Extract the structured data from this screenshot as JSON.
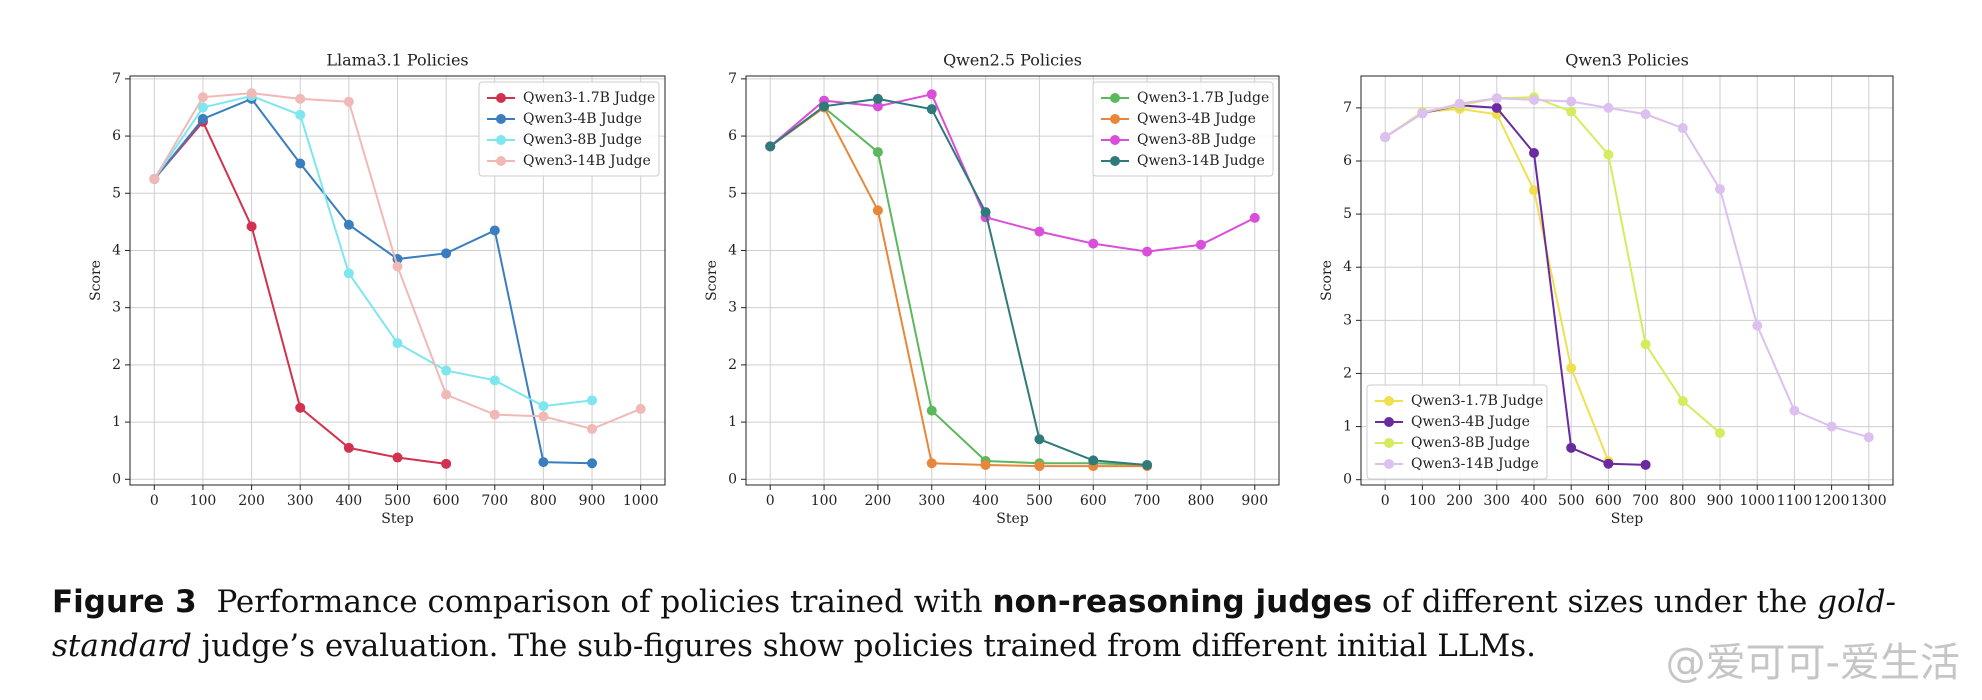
{
  "chart_data": [
    {
      "type": "line",
      "title": "Llama3.1 Policies",
      "xlabel": "Step",
      "ylabel": "Score",
      "xlim": [
        -50,
        1050
      ],
      "xticks": [
        0,
        100,
        200,
        300,
        400,
        500,
        600,
        700,
        800,
        900,
        1000
      ],
      "ylim": [
        -0.1,
        7.05
      ],
      "yticks": [
        0,
        1,
        2,
        3,
        4,
        5,
        6,
        7
      ],
      "grid": true,
      "legend": "upper-right",
      "series": [
        {
          "name": "Qwen3-1.7B Judge",
          "color": "#d1324f",
          "x": [
            0,
            100,
            200,
            300,
            400,
            500,
            600
          ],
          "values": [
            5.25,
            6.25,
            4.42,
            1.25,
            0.55,
            0.38,
            0.27
          ]
        },
        {
          "name": "Qwen3-4B Judge",
          "color": "#3a7ebf",
          "x": [
            0,
            100,
            200,
            300,
            400,
            500,
            600,
            700,
            800,
            900
          ],
          "values": [
            5.25,
            6.3,
            6.65,
            5.52,
            4.45,
            3.85,
            3.95,
            4.35,
            0.3,
            0.28
          ]
        },
        {
          "name": "Qwen3-8B Judge",
          "color": "#7de6ee",
          "x": [
            0,
            100,
            200,
            300,
            400,
            500,
            600,
            700,
            800,
            900
          ],
          "values": [
            5.25,
            6.5,
            6.7,
            6.37,
            3.6,
            2.38,
            1.9,
            1.73,
            1.28,
            1.38
          ]
        },
        {
          "name": "Qwen3-14B Judge",
          "color": "#f0b9b6",
          "x": [
            0,
            100,
            200,
            300,
            400,
            500,
            600,
            700,
            800,
            900,
            1000
          ],
          "values": [
            5.25,
            6.68,
            6.75,
            6.65,
            6.6,
            3.72,
            1.48,
            1.13,
            1.1,
            0.88,
            1.23
          ]
        }
      ]
    },
    {
      "type": "line",
      "title": "Qwen2.5 Policies",
      "xlabel": "Step",
      "ylabel": "Score",
      "xlim": [
        -45,
        945
      ],
      "xticks": [
        0,
        100,
        200,
        300,
        400,
        500,
        600,
        700,
        800,
        900
      ],
      "ylim": [
        -0.1,
        7.05
      ],
      "yticks": [
        0,
        1,
        2,
        3,
        4,
        5,
        6,
        7
      ],
      "grid": true,
      "legend": "upper-right",
      "series": [
        {
          "name": "Qwen3-1.7B Judge",
          "color": "#5cb85c",
          "x": [
            0,
            100,
            200,
            300,
            400,
            500,
            600,
            700
          ],
          "values": [
            5.82,
            6.5,
            5.72,
            1.2,
            0.32,
            0.28,
            0.28,
            0.25
          ]
        },
        {
          "name": "Qwen3-4B Judge",
          "color": "#e8873a",
          "x": [
            0,
            100,
            200,
            300,
            400,
            500,
            600,
            700
          ],
          "values": [
            5.82,
            6.5,
            4.7,
            0.28,
            0.25,
            0.23,
            0.23,
            0.23
          ]
        },
        {
          "name": "Qwen3-8B Judge",
          "color": "#d94fd9",
          "x": [
            0,
            100,
            200,
            300,
            400,
            500,
            600,
            700,
            800,
            900
          ],
          "values": [
            5.82,
            6.62,
            6.52,
            6.73,
            4.58,
            4.33,
            4.12,
            3.98,
            4.1,
            4.57
          ]
        },
        {
          "name": "Qwen3-14B Judge",
          "color": "#2f7a7a",
          "x": [
            0,
            100,
            200,
            300,
            400,
            500,
            600,
            700
          ],
          "values": [
            5.82,
            6.52,
            6.65,
            6.47,
            4.67,
            0.7,
            0.33,
            0.25
          ]
        }
      ]
    },
    {
      "type": "line",
      "title": "Qwen3 Policies",
      "xlabel": "Step",
      "ylabel": "Score",
      "xlim": [
        -65,
        1365
      ],
      "xticks": [
        0,
        100,
        200,
        300,
        400,
        500,
        600,
        700,
        800,
        900,
        1000,
        1100,
        1200,
        1300
      ],
      "ylim": [
        -0.1,
        7.6
      ],
      "yticks": [
        0,
        1,
        2,
        3,
        4,
        5,
        6,
        7
      ],
      "grid": true,
      "legend": "lower-left",
      "series": [
        {
          "name": "Qwen3-1.7B Judge",
          "color": "#f0e050",
          "x": [
            0,
            100,
            200,
            300,
            400,
            500,
            600
          ],
          "values": [
            6.45,
            6.92,
            6.98,
            6.88,
            5.45,
            2.1,
            0.35
          ]
        },
        {
          "name": "Qwen3-4B Judge",
          "color": "#6a2aa0",
          "x": [
            0,
            100,
            200,
            300,
            400,
            500,
            600,
            700
          ],
          "values": [
            6.45,
            6.9,
            7.05,
            7.0,
            6.15,
            0.6,
            0.3,
            0.28
          ]
        },
        {
          "name": "Qwen3-8B Judge",
          "color": "#d6ec5e",
          "x": [
            0,
            100,
            200,
            300,
            400,
            500,
            600,
            700,
            800,
            900
          ],
          "values": [
            6.45,
            6.92,
            7.05,
            7.18,
            7.2,
            6.93,
            6.12,
            2.55,
            1.48,
            0.88
          ]
        },
        {
          "name": "Qwen3-14B Judge",
          "color": "#dcc0f0",
          "x": [
            0,
            100,
            200,
            300,
            400,
            500,
            600,
            700,
            800,
            900,
            1000,
            1100,
            1200,
            1300
          ],
          "values": [
            6.45,
            6.9,
            7.08,
            7.18,
            7.15,
            7.12,
            7.0,
            6.88,
            6.62,
            5.47,
            2.9,
            1.3,
            1.0,
            0.8
          ]
        }
      ]
    }
  ],
  "caption": {
    "label": "Figure 3",
    "part1": "Performance comparison of policies trained with",
    "bold": "non-reasoning judges",
    "part2": "of different sizes under the",
    "italic": "gold-standard",
    "part3": "judge’s evaluation. The sub-figures show policies trained from different initial LLMs."
  },
  "watermark": "@爱可可-爱生活"
}
